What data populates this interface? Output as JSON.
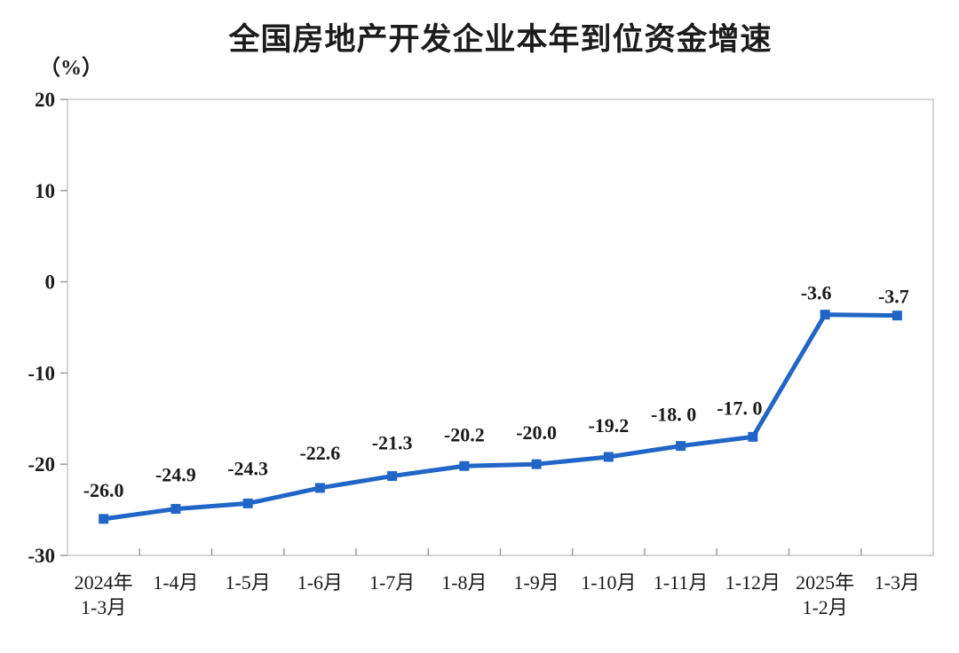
{
  "chart_data": {
    "type": "line",
    "title": "全国房地产开发企业本年到位资金增速",
    "unit_label": "（%）",
    "series_name": "全国房地产开发企业本年到位资金增速",
    "categories": [
      [
        "2024年",
        "1-3月"
      ],
      [
        "1-4月"
      ],
      [
        "1-5月"
      ],
      [
        "1-6月"
      ],
      [
        "1-7月"
      ],
      [
        "1-8月"
      ],
      [
        "1-9月"
      ],
      [
        "1-10月"
      ],
      [
        "1-11月"
      ],
      [
        "1-12月"
      ],
      [
        "2025年",
        "1-2月"
      ],
      [
        "1-3月"
      ]
    ],
    "values": [
      -26.0,
      -24.9,
      -24.3,
      -22.6,
      -21.3,
      -20.2,
      -20.0,
      -19.2,
      -18.0,
      -17.0,
      -3.6,
      -3.7
    ],
    "data_labels": [
      "-26.0",
      "-24.9",
      "-24.3",
      "-22.6",
      "-21.3",
      "-20.2",
      "-20.0",
      "-19.2",
      "-18. 0",
      "-17. 0",
      "-3.6",
      "-3.7"
    ],
    "y_ticks": [
      20,
      10,
      0,
      -10,
      -20,
      -30
    ],
    "ylim": [
      -30,
      20
    ],
    "xlabel": "",
    "ylabel": "（%）",
    "grid": false,
    "legend": "none",
    "marker": "square",
    "colors": {
      "line": "#2166c6",
      "marker": "#2166c6",
      "axis_border": "#c6c6c6",
      "tick": "#9e9e9e",
      "text": "#1a1a1a",
      "background": "#ffffff"
    },
    "label_dy": [
      -25,
      -31,
      -32,
      -32,
      -30,
      -28,
      -28,
      -28,
      -28,
      -25,
      -17,
      -14
    ],
    "label_dx": [
      0,
      0,
      0,
      0,
      0,
      0,
      0,
      0,
      -8,
      -15,
      -10,
      -4
    ]
  }
}
